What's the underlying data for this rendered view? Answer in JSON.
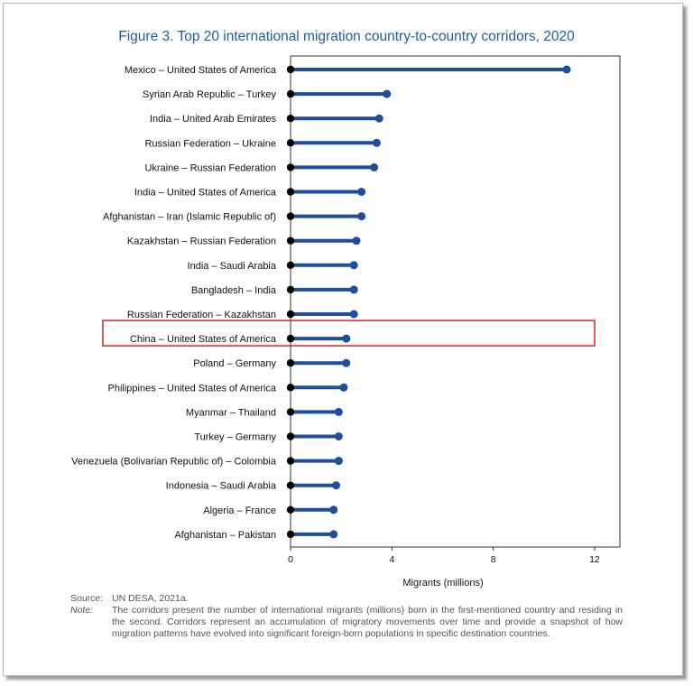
{
  "chart_data": {
    "type": "lollipop",
    "title": "Figure 3. Top 20 international migration country-to-country corridors, 2020",
    "xlabel": "Migrants (millions)",
    "xlim": [
      0,
      13
    ],
    "xticks": [
      0,
      4,
      8,
      12
    ],
    "categories": [
      "Mexico – United States of America",
      "Syrian Arab Republic – Turkey",
      "India – United Arab Emirates",
      "Russian Federation – Ukraine",
      "Ukraine – Russian Federation",
      "India – United States of America",
      "Afghanistan – Iran (Islamic Republic of)",
      "Kazakhstan – Russian Federation",
      "India – Saudi Arabia",
      "Bangladesh – India",
      "Russian Federation – Kazakhstan",
      "China – United States of America",
      "Poland – Germany",
      "Philippines – United States of America",
      "Myanmar – Thailand",
      "Turkey – Germany",
      "Venezuela (Bolivarian Republic of) – Colombia",
      "Indonesia – Saudi Arabia",
      "Algeria – France",
      "Afghanistan – Pakistan"
    ],
    "values": [
      10.9,
      3.8,
      3.5,
      3.4,
      3.3,
      2.8,
      2.8,
      2.6,
      2.5,
      2.5,
      2.5,
      2.2,
      2.2,
      2.1,
      1.9,
      1.9,
      1.9,
      1.8,
      1.7,
      1.7
    ],
    "highlighted_category": "China – United States of America",
    "colors": {
      "line": "#1f4e9c",
      "start_dot": "#000000",
      "highlight_box": "#d62728",
      "title": "#1f5da8"
    }
  },
  "notes": {
    "source_key": "Source:",
    "source_text": "UN DESA, 2021a.",
    "note_key": "Note:",
    "note_text": "The corridors present the number of international migrants (millions) born in the first-mentioned country and residing in the second. Corridors represent an accumulation of migratory movements over time and provide a snapshot of how migration patterns have evolved into significant foreign-born populations in specific destination countries."
  }
}
